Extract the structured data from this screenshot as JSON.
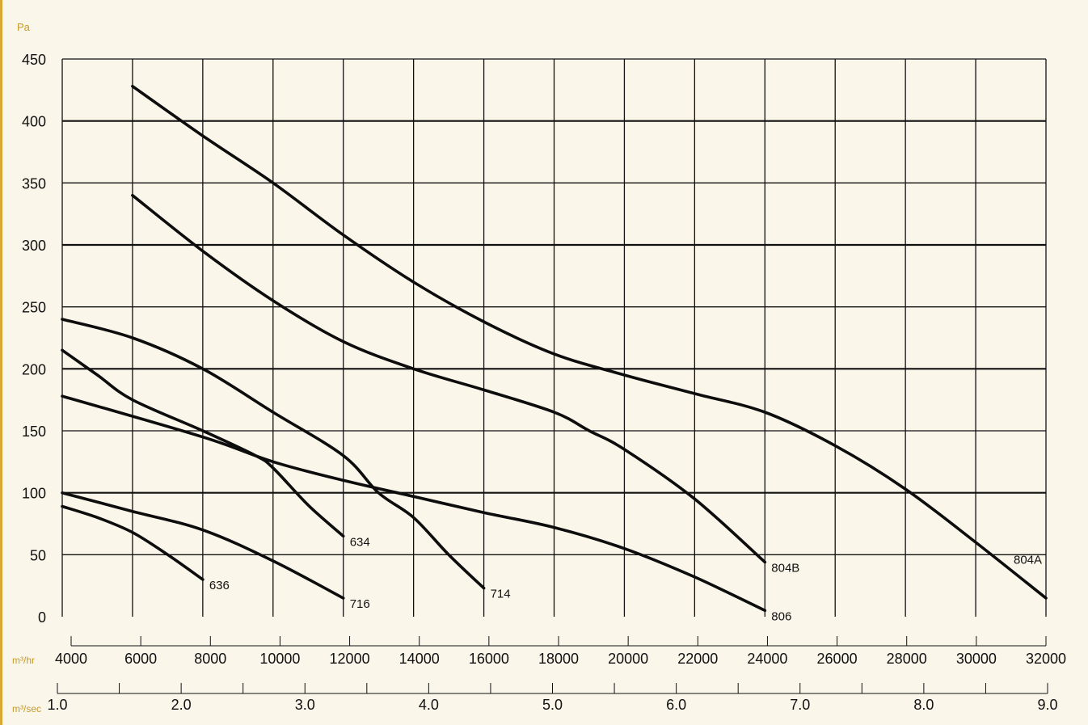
{
  "chart_data": {
    "type": "line",
    "ylabel": "Pa",
    "xlabel": "m³/hr",
    "x2label": "m³/sec",
    "xlim": [
      4000,
      32000
    ],
    "ylim": [
      0,
      450
    ],
    "x_ticks": [
      "4000",
      "6000",
      "8000",
      "10000",
      "12000",
      "14000",
      "16000",
      "18000",
      "20000",
      "22000",
      "24000",
      "26000",
      "28000",
      "30000",
      "32000"
    ],
    "y_ticks": [
      "0",
      "50",
      "100",
      "150",
      "200",
      "250",
      "300",
      "350",
      "400",
      "450"
    ],
    "x2_range": [
      1.0,
      9.0
    ],
    "x2_ticks": [
      "1.0",
      "2.0",
      "3.0",
      "4.0",
      "5.0",
      "6.0",
      "7.0",
      "8.0",
      "9.0"
    ],
    "grid": true,
    "series": [
      {
        "name": "636",
        "x": [
          4000,
          5000,
          6000,
          7000,
          8000
        ],
        "y": [
          89,
          80,
          68,
          50,
          30
        ]
      },
      {
        "name": "716",
        "x": [
          4000,
          6000,
          8000,
          10000,
          12000
        ],
        "y": [
          100,
          85,
          70,
          45,
          15
        ]
      },
      {
        "name": "634",
        "x": [
          4000,
          5000,
          6000,
          8000,
          9500,
          10000,
          11000,
          12000
        ],
        "y": [
          215,
          195,
          175,
          150,
          130,
          120,
          90,
          65
        ]
      },
      {
        "name": "714",
        "x": [
          4000,
          6000,
          8000,
          10000,
          12000,
          13000,
          14000,
          15000,
          16000
        ],
        "y": [
          240,
          225,
          200,
          165,
          130,
          100,
          80,
          50,
          23
        ]
      },
      {
        "name": "806",
        "x": [
          4000,
          8000,
          10000,
          12000,
          14000,
          16000,
          18000,
          20000,
          22000,
          24000
        ],
        "y": [
          178,
          145,
          125,
          110,
          97,
          84,
          72,
          55,
          32,
          5
        ]
      },
      {
        "name": "804B",
        "x": [
          6000,
          8000,
          10000,
          12000,
          14000,
          16000,
          18000,
          19000,
          20000,
          22000,
          24000
        ],
        "y": [
          340,
          295,
          255,
          222,
          200,
          183,
          165,
          150,
          135,
          95,
          44
        ]
      },
      {
        "name": "804A",
        "x": [
          6000,
          8000,
          10000,
          12000,
          14000,
          16000,
          18000,
          20000,
          22000,
          24000,
          26000,
          28000,
          30000,
          32000
        ],
        "y": [
          428,
          388,
          350,
          308,
          270,
          238,
          212,
          195,
          180,
          165,
          138,
          103,
          60,
          15
        ]
      }
    ]
  }
}
